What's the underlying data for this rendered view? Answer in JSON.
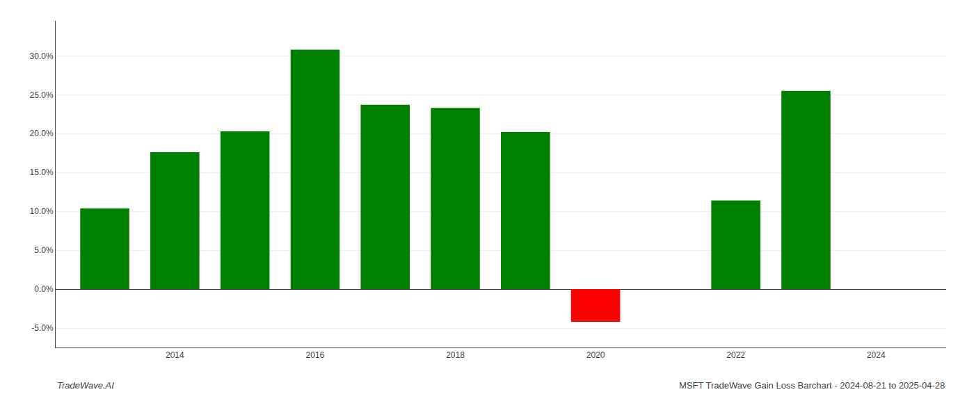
{
  "chart_data": {
    "type": "bar",
    "x": [
      2013,
      2014,
      2015,
      2016,
      2017,
      2018,
      2019,
      2020,
      2022,
      2023
    ],
    "values": [
      0.104,
      0.176,
      0.203,
      0.308,
      0.237,
      0.233,
      0.202,
      -0.042,
      0.114,
      0.255
    ],
    "colors": [
      "#008000",
      "#008000",
      "#008000",
      "#008000",
      "#008000",
      "#008000",
      "#008000",
      "#ff0000",
      "#008000",
      "#008000"
    ],
    "xlim": [
      2012.3,
      2025.0
    ],
    "xticks": [
      2014,
      2016,
      2018,
      2020,
      2022,
      2024
    ],
    "ylim": [
      -0.075,
      0.345
    ],
    "yticks": [
      {
        "value": -0.05,
        "label": "-5.0%"
      },
      {
        "value": 0.0,
        "label": "0.0%"
      },
      {
        "value": 0.05,
        "label": "5.0%"
      },
      {
        "value": 0.1,
        "label": "10.0%"
      },
      {
        "value": 0.15,
        "label": "15.0%"
      },
      {
        "value": 0.2,
        "label": "20.0%"
      },
      {
        "value": 0.25,
        "label": "25.0%"
      },
      {
        "value": 0.3,
        "label": "30.0%"
      }
    ],
    "grid": true,
    "annotations": [
      "TradeWave.AI",
      "MSFT TradeWave Gain Loss Barchart - 2024-08-21 to 2025-04-28"
    ]
  }
}
